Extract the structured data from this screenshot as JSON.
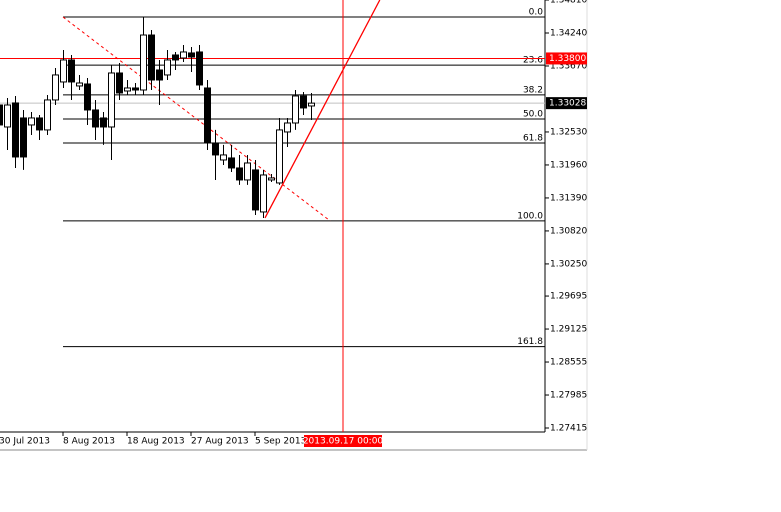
{
  "chart_data": {
    "type": "candlestick",
    "categories": [
      "30 Jul 2013",
      null,
      null,
      null,
      null,
      null,
      null,
      null,
      "8 Aug 2013",
      null,
      null,
      null,
      null,
      null,
      null,
      null,
      "18 Aug 2013",
      null,
      null,
      null,
      null,
      null,
      null,
      null,
      "27 Aug 2013",
      null,
      null,
      null,
      null,
      null,
      null,
      null,
      "5 Sep 2013",
      null,
      null,
      null,
      null,
      null,
      null,
      null
    ],
    "open": [
      1.32996,
      1.32616,
      1.33031,
      1.32772,
      1.32651,
      1.32772,
      1.32565,
      1.33083,
      1.33394,
      1.33774,
      1.33325,
      1.33359,
      1.3291,
      1.32772,
      1.32616,
      1.33549,
      1.33238,
      1.3329,
      1.33255,
      1.34205,
      1.33601,
      1.33515,
      1.3386,
      1.33808,
      1.33895,
      1.33912,
      1.3329,
      1.3234,
      1.32046,
      1.32081,
      1.31908,
      1.31701,
      1.31874,
      1.31148,
      1.31701,
      1.31649,
      1.3253,
      1.32685,
      1.33152,
      1.32979
    ],
    "high": [
      1.33117,
      1.33117,
      1.33152,
      1.3291,
      1.32875,
      1.32824,
      1.33169,
      1.33635,
      1.33946,
      1.3386,
      1.33515,
      1.33463,
      1.33083,
      1.32875,
      1.33687,
      1.33722,
      1.33428,
      1.33376,
      1.34516,
      1.34292,
      1.33774,
      1.33946,
      1.33912,
      1.34033,
      1.33998,
      1.34033,
      1.33428,
      1.32565,
      1.32306,
      1.32306,
      1.32133,
      1.32133,
      1.32046,
      1.31874,
      1.31804,
      1.32772,
      1.32772,
      1.33255,
      1.33221,
      1.33204
    ],
    "low": [
      1.32565,
      1.32219,
      1.31908,
      1.31874,
      1.32478,
      1.32392,
      1.32478,
      1.32996,
      1.3329,
      1.33083,
      1.33255,
      1.32651,
      1.32392,
      1.32306,
      1.32046,
      1.33083,
      1.33169,
      1.33169,
      1.33169,
      1.33255,
      1.32996,
      1.33428,
      1.33601,
      1.33739,
      1.33566,
      1.33255,
      1.32219,
      1.31701,
      1.3196,
      1.31839,
      1.31615,
      1.31615,
      1.31096,
      1.31044,
      1.31666,
      1.31615,
      1.32271,
      1.32565,
      1.32824,
      1.32737
    ],
    "close": [
      1.32651,
      1.32996,
      1.32098,
      1.32098,
      1.32772,
      1.32565,
      1.33083,
      1.33515,
      1.33774,
      1.33394,
      1.33376,
      1.3291,
      1.32616,
      1.32616,
      1.33549,
      1.33204,
      1.3329,
      1.33255,
      1.34205,
      1.33428,
      1.33428,
      1.33774,
      1.33774,
      1.33912,
      1.33825,
      1.33342,
      1.3234,
      1.32133,
      1.32133,
      1.31908,
      1.31701,
      1.31994,
      1.31183,
      1.31787,
      1.31735,
      1.32565,
      1.32685,
      1.33152,
      1.32945,
      1.33028
    ],
    "up_color": "#ffffff",
    "down_color": "#000000",
    "ylim": [
      1.27346,
      1.3481
    ],
    "yticks": [
      {
        "value": 1.3481,
        "label": "1.34810"
      },
      {
        "value": 1.3424,
        "label": "1.34240"
      },
      {
        "value": 1.3367,
        "label": "1.33670"
      },
      {
        "value": 1.3253,
        "label": "1.32530"
      },
      {
        "value": 1.3196,
        "label": "1.31960"
      },
      {
        "value": 1.3139,
        "label": "1.31390"
      },
      {
        "value": 1.3082,
        "label": "1.30820"
      },
      {
        "value": 1.3025,
        "label": "1.30250"
      },
      1.29695,
      1.29125,
      1.28555,
      1.27985,
      1.27415
    ],
    "fib_levels": [
      {
        "label": "0.0",
        "price": 1.34516
      },
      {
        "label": "23.6",
        "price": 1.33685
      },
      {
        "label": "38.2",
        "price": 1.33171
      },
      {
        "label": "50.0",
        "price": 1.32755
      },
      {
        "label": "61.8",
        "price": 1.32339
      },
      {
        "label": "100.0",
        "price": 1.30993
      },
      {
        "label": "161.8",
        "price": 1.28821
      }
    ],
    "fib_line": {
      "bars": [
        8,
        41.4
      ],
      "prices": [
        1.34516,
        1.30993
      ],
      "color": "#ff0000"
    },
    "trend_line": {
      "bars": [
        33.25,
        47.6
      ],
      "prices": [
        1.31044,
        1.3481
      ],
      "color": "#ff0000"
    },
    "horizontal_line": {
      "value": 1.338,
      "label": "1.33800",
      "color": "#ff0000"
    },
    "current_price": {
      "value": 1.33028,
      "label": "1.33028"
    },
    "vertical_line": {
      "bar": 43,
      "label": "2013.09.17 00:00",
      "color": "#ff0000"
    }
  }
}
